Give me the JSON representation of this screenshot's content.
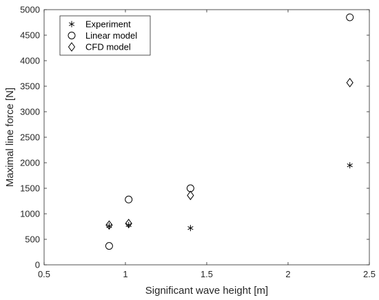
{
  "chart_data": {
    "type": "scatter",
    "title": "",
    "xlabel": "Significant wave height [m]",
    "ylabel": "Maximal line force [N]",
    "xlim": [
      0.5,
      2.5
    ],
    "ylim": [
      0,
      5000
    ],
    "xticks": [
      0.5,
      1,
      1.5,
      2,
      2.5
    ],
    "xtick_labels": [
      "0.5",
      "1",
      "1.5",
      "2",
      "2.5"
    ],
    "yticks": [
      0,
      500,
      1000,
      1500,
      2000,
      2500,
      3000,
      3500,
      4000,
      4500,
      5000
    ],
    "ytick_labels": [
      "0",
      "500",
      "1000",
      "1500",
      "2000",
      "2500",
      "3000",
      "3500",
      "4000",
      "4500",
      "5000"
    ],
    "grid": false,
    "legend_position": "top-left",
    "series": [
      {
        "name": "Experiment",
        "marker": "asterisk",
        "x": [
          0.9,
          1.02,
          1.4,
          2.38
        ],
        "y": [
          760,
          780,
          720,
          1950
        ]
      },
      {
        "name": "Linear model",
        "marker": "circle",
        "x": [
          0.9,
          1.02,
          1.4,
          2.38
        ],
        "y": [
          370,
          1280,
          1500,
          4850
        ]
      },
      {
        "name": "CFD model",
        "marker": "diamond",
        "x": [
          0.9,
          1.02,
          1.4,
          2.38
        ],
        "y": [
          780,
          810,
          1360,
          3570
        ]
      }
    ]
  }
}
